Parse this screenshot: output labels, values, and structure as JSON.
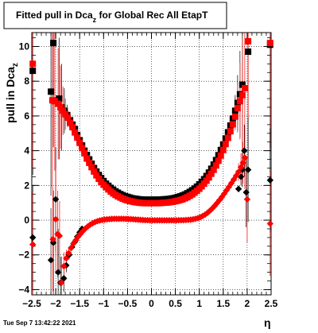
{
  "title": {
    "main": "Fitted pull in Dca",
    "sub": "z",
    "rest": " for Global Rec All EtapT"
  },
  "footer": "Tue Sep  7 13:42:22 2021",
  "chart_data": {
    "type": "scatter",
    "title": "Fitted pull in Dca_z for Global Rec All EtapT",
    "xlabel": "η",
    "ylabel": "pull in Dca",
    "ylabel_sub": "z",
    "xlim": [
      -2.5,
      2.5
    ],
    "ylim": [
      -4.3,
      10.8
    ],
    "grid": true,
    "x_ticks": [
      -2.5,
      -2,
      -1.5,
      -1,
      -0.5,
      0,
      0.5,
      1,
      1.5,
      2,
      2.5
    ],
    "x_tick_labels": [
      "−2.5",
      "−2",
      "−1.5",
      "−1",
      "−0.5",
      "0",
      "0.5",
      "1",
      "1.5",
      "2",
      "2.5"
    ],
    "y_ticks": [
      -4,
      -2,
      0,
      2,
      4,
      6,
      8,
      10
    ],
    "y_tick_labels": [
      "−4",
      "−2",
      "0",
      "2",
      "4",
      "6",
      "8",
      "10"
    ],
    "series": [
      {
        "marker": "square",
        "color": "#000000",
        "x": [
          -2.48,
          -2.1,
          -2.05,
          -1.93,
          -1.88,
          -1.82,
          -1.76,
          -1.7,
          -1.65,
          -1.6,
          -1.55,
          -1.5,
          -1.45,
          -1.4,
          -1.35,
          -1.3,
          -1.25,
          -1.2,
          -1.15,
          -1.1,
          -1.05,
          -1.0,
          -0.95,
          -0.9,
          -0.85,
          -0.8,
          -0.75,
          -0.7,
          -0.65,
          -0.6,
          -0.55,
          -0.5,
          -0.45,
          -0.4,
          -0.35,
          -0.3,
          -0.25,
          -0.2,
          -0.15,
          -0.1,
          -0.05,
          0.0,
          0.05,
          0.1,
          0.15,
          0.2,
          0.25,
          0.3,
          0.35,
          0.4,
          0.45,
          0.5,
          0.55,
          0.6,
          0.65,
          0.7,
          0.75,
          0.8,
          0.85,
          0.9,
          0.95,
          1.0,
          1.05,
          1.1,
          1.15,
          1.2,
          1.25,
          1.3,
          1.35,
          1.4,
          1.45,
          1.5,
          1.55,
          1.6,
          1.65,
          1.7,
          1.75,
          1.8,
          1.85,
          1.9,
          2.02,
          2.48
        ],
        "y": [
          8.6,
          7.4,
          10.2,
          7.0,
          6.5,
          6.3,
          6.05,
          5.75,
          5.5,
          5.25,
          4.9,
          4.6,
          4.3,
          4.0,
          3.75,
          3.5,
          3.25,
          3.0,
          2.8,
          2.6,
          2.42,
          2.25,
          2.1,
          1.98,
          1.86,
          1.76,
          1.66,
          1.58,
          1.5,
          1.44,
          1.38,
          1.34,
          1.3,
          1.26,
          1.24,
          1.22,
          1.2,
          1.19,
          1.18,
          1.18,
          1.18,
          1.18,
          1.18,
          1.18,
          1.18,
          1.19,
          1.2,
          1.21,
          1.22,
          1.24,
          1.26,
          1.29,
          1.33,
          1.37,
          1.42,
          1.48,
          1.55,
          1.63,
          1.72,
          1.82,
          1.93,
          2.06,
          2.2,
          2.36,
          2.54,
          2.74,
          2.96,
          3.2,
          3.46,
          3.74,
          4.04,
          4.36,
          4.7,
          5.06,
          5.45,
          5.85,
          6.3,
          6.75,
          7.25,
          7.8,
          9.7,
          10.1
        ],
        "yerr": [
          6.0,
          6.0,
          6.0,
          3.5,
          2.5,
          1.3,
          0.6,
          0.35,
          0.2,
          0.15,
          0.1,
          0.08,
          0.06,
          0.05,
          0.05,
          0.04,
          0.04,
          0.03,
          0.03,
          0.03,
          0.03,
          0.03,
          0.03,
          0.03,
          0.03,
          0.03,
          0.03,
          0.03,
          0.03,
          0.03,
          0.03,
          0.03,
          0.03,
          0.03,
          0.03,
          0.03,
          0.03,
          0.03,
          0.03,
          0.03,
          0.03,
          0.03,
          0.03,
          0.03,
          0.03,
          0.03,
          0.03,
          0.03,
          0.03,
          0.03,
          0.03,
          0.03,
          0.03,
          0.03,
          0.03,
          0.03,
          0.03,
          0.03,
          0.03,
          0.03,
          0.03,
          0.03,
          0.03,
          0.03,
          0.03,
          0.03,
          0.04,
          0.04,
          0.05,
          0.06,
          0.08,
          0.1,
          0.15,
          0.2,
          0.3,
          0.5,
          0.9,
          1.6,
          2.5,
          3.5,
          6.0,
          6.0
        ]
      },
      {
        "marker": "square",
        "color": "#ff0000",
        "x": [
          -2.48,
          -2.07,
          -2.02,
          -1.95,
          -1.9,
          -1.85,
          -1.8,
          -1.75,
          -1.7,
          -1.65,
          -1.6,
          -1.55,
          -1.5,
          -1.45,
          -1.4,
          -1.35,
          -1.3,
          -1.25,
          -1.2,
          -1.15,
          -1.1,
          -1.05,
          -1.0,
          -0.95,
          -0.9,
          -0.85,
          -0.8,
          -0.75,
          -0.7,
          -0.65,
          -0.6,
          -0.55,
          -0.5,
          -0.45,
          -0.4,
          -0.35,
          -0.3,
          -0.25,
          -0.2,
          -0.15,
          -0.1,
          -0.05,
          0.0,
          0.05,
          0.1,
          0.15,
          0.2,
          0.25,
          0.3,
          0.35,
          0.4,
          0.45,
          0.5,
          0.55,
          0.6,
          0.65,
          0.7,
          0.75,
          0.8,
          0.85,
          0.9,
          0.95,
          1.0,
          1.05,
          1.1,
          1.15,
          1.2,
          1.25,
          1.3,
          1.35,
          1.4,
          1.45,
          1.5,
          1.55,
          1.6,
          1.65,
          1.7,
          1.75,
          1.8,
          1.85,
          1.9,
          1.95,
          2.02,
          2.48
        ],
        "y": [
          9.0,
          6.9,
          6.85,
          6.7,
          6.5,
          6.3,
          6.1,
          5.9,
          5.6,
          5.35,
          5.05,
          4.75,
          4.45,
          4.15,
          3.85,
          3.55,
          3.3,
          3.05,
          2.8,
          2.58,
          2.38,
          2.2,
          2.04,
          1.9,
          1.77,
          1.65,
          1.54,
          1.45,
          1.37,
          1.3,
          1.24,
          1.18,
          1.14,
          1.1,
          1.07,
          1.04,
          1.02,
          1.0,
          0.99,
          0.98,
          0.98,
          0.98,
          0.98,
          0.98,
          0.98,
          0.98,
          0.99,
          1.0,
          1.01,
          1.02,
          1.04,
          1.06,
          1.09,
          1.12,
          1.16,
          1.2,
          1.26,
          1.32,
          1.4,
          1.48,
          1.58,
          1.69,
          1.81,
          1.95,
          2.1,
          2.27,
          2.46,
          2.67,
          2.9,
          3.15,
          3.42,
          3.72,
          4.04,
          4.38,
          4.74,
          5.12,
          5.52,
          5.96,
          6.45,
          6.85,
          7.2,
          7.6,
          10.3,
          10.2
        ],
        "yerr": [
          6.0,
          5.0,
          4.0,
          3.2,
          2.4,
          1.4,
          0.9,
          0.55,
          0.3,
          0.2,
          0.15,
          0.1,
          0.08,
          0.06,
          0.05,
          0.05,
          0.04,
          0.04,
          0.03,
          0.03,
          0.03,
          0.03,
          0.03,
          0.03,
          0.03,
          0.03,
          0.03,
          0.03,
          0.03,
          0.03,
          0.03,
          0.03,
          0.03,
          0.03,
          0.03,
          0.03,
          0.03,
          0.03,
          0.03,
          0.03,
          0.03,
          0.03,
          0.03,
          0.03,
          0.03,
          0.03,
          0.03,
          0.03,
          0.03,
          0.03,
          0.03,
          0.03,
          0.03,
          0.03,
          0.03,
          0.03,
          0.03,
          0.03,
          0.03,
          0.03,
          0.03,
          0.03,
          0.03,
          0.03,
          0.03,
          0.03,
          0.03,
          0.04,
          0.04,
          0.05,
          0.06,
          0.08,
          0.1,
          0.15,
          0.2,
          0.3,
          0.5,
          0.8,
          1.4,
          2.2,
          3.2,
          4.5,
          6.0,
          6.0
        ]
      },
      {
        "marker": "diamond",
        "color": "#000000",
        "x": [
          -2.48,
          -2.1,
          -2.05,
          -2.0,
          -1.95,
          -1.9,
          -1.83,
          -1.78,
          -1.72,
          -1.66,
          -1.6,
          -1.55,
          -1.5,
          -1.45,
          1.82,
          1.87,
          1.9,
          1.94,
          1.98,
          2.02,
          2.48
        ],
        "y": [
          -1.0,
          -2.3,
          -1.3,
          1.2,
          -3.0,
          -3.6,
          -3.35,
          -2.6,
          -2.0,
          -1.55,
          -1.25,
          -0.95,
          -0.7,
          -0.5,
          1.8,
          2.5,
          2.9,
          4.0,
          1.6,
          2.9,
          2.3
        ],
        "yerr": [
          3.0,
          3.0,
          3.0,
          3.0,
          2.5,
          1.5,
          0.8,
          0.4,
          0.25,
          0.15,
          0.1,
          0.08,
          0.06,
          0.05,
          0.2,
          0.5,
          1.0,
          1.5,
          2.0,
          3.0,
          3.0
        ]
      },
      {
        "marker": "diamond",
        "color": "#ff0000",
        "x": [
          -2.48,
          -2.06,
          -2.0,
          -1.96,
          -1.92,
          -1.88,
          -1.83,
          -1.78,
          -1.73,
          -1.68,
          -1.63,
          -1.58,
          -1.53,
          -1.48,
          -1.43,
          -1.38,
          -1.33,
          -1.28,
          -1.23,
          -1.18,
          -1.13,
          -1.08,
          -1.03,
          -0.98,
          -0.93,
          -0.88,
          -0.83,
          -0.78,
          -0.73,
          -0.68,
          -0.63,
          -0.58,
          -0.53,
          -0.48,
          -0.43,
          -0.38,
          -0.33,
          -0.28,
          -0.23,
          -0.18,
          -0.13,
          -0.08,
          -0.03,
          0.02,
          0.07,
          0.12,
          0.17,
          0.22,
          0.27,
          0.32,
          0.37,
          0.42,
          0.47,
          0.52,
          0.57,
          0.62,
          0.67,
          0.72,
          0.77,
          0.82,
          0.87,
          0.92,
          0.97,
          1.02,
          1.07,
          1.12,
          1.17,
          1.22,
          1.27,
          1.32,
          1.37,
          1.42,
          1.47,
          1.52,
          1.57,
          1.62,
          1.67,
          1.72,
          1.77,
          1.82,
          1.87,
          1.91,
          1.95,
          2.0,
          2.48
        ],
        "y": [
          -1.4,
          -1.1,
          0.05,
          -0.8,
          -0.9,
          -3.6,
          -2.65,
          -2.2,
          -1.9,
          -1.6,
          -1.35,
          -1.15,
          -0.95,
          -0.78,
          -0.62,
          -0.48,
          -0.36,
          -0.26,
          -0.18,
          -0.11,
          -0.06,
          -0.02,
          0.01,
          0.03,
          0.05,
          0.06,
          0.07,
          0.08,
          0.08,
          0.08,
          0.08,
          0.08,
          0.07,
          0.06,
          0.06,
          0.05,
          0.04,
          0.03,
          0.02,
          0.01,
          0.0,
          0.0,
          -0.01,
          -0.01,
          -0.01,
          -0.01,
          -0.01,
          -0.01,
          -0.01,
          -0.01,
          -0.01,
          -0.01,
          -0.01,
          -0.01,
          0.0,
          0.0,
          0.0,
          0.01,
          0.02,
          0.03,
          0.05,
          0.08,
          0.12,
          0.17,
          0.24,
          0.32,
          0.42,
          0.54,
          0.67,
          0.82,
          0.98,
          1.15,
          1.33,
          1.52,
          1.72,
          1.92,
          2.13,
          2.34,
          2.56,
          2.78,
          3.05,
          3.3,
          3.6,
          1.2,
          -0.2
        ],
        "yerr": [
          3.0,
          3.0,
          3.0,
          2.5,
          2.0,
          1.5,
          0.8,
          0.5,
          0.3,
          0.2,
          0.15,
          0.1,
          0.08,
          0.06,
          0.05,
          0.05,
          0.04,
          0.04,
          0.03,
          0.03,
          0.03,
          0.03,
          0.03,
          0.03,
          0.03,
          0.03,
          0.03,
          0.03,
          0.03,
          0.03,
          0.03,
          0.03,
          0.03,
          0.03,
          0.03,
          0.03,
          0.03,
          0.03,
          0.03,
          0.03,
          0.03,
          0.03,
          0.03,
          0.03,
          0.03,
          0.03,
          0.03,
          0.03,
          0.03,
          0.03,
          0.03,
          0.03,
          0.03,
          0.03,
          0.03,
          0.03,
          0.03,
          0.03,
          0.03,
          0.03,
          0.03,
          0.03,
          0.03,
          0.03,
          0.03,
          0.03,
          0.03,
          0.03,
          0.03,
          0.03,
          0.03,
          0.04,
          0.05,
          0.06,
          0.08,
          0.1,
          0.15,
          0.2,
          0.3,
          0.5,
          0.8,
          1.2,
          1.8,
          2.5,
          3.0
        ]
      }
    ]
  }
}
